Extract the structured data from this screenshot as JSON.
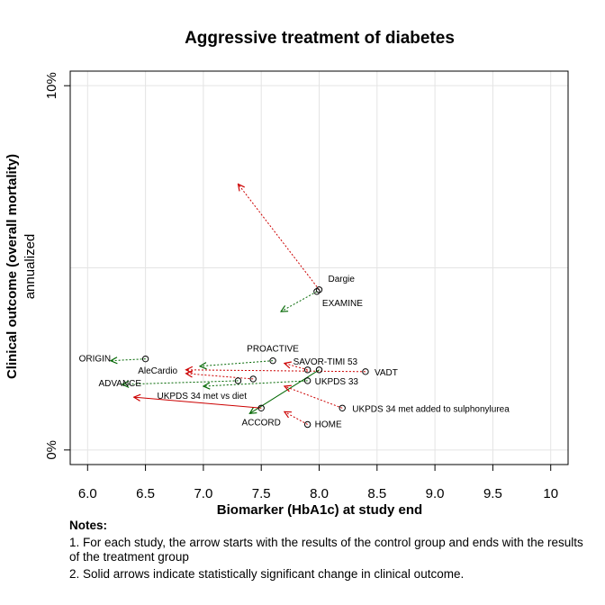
{
  "chart_data": {
    "type": "scatter",
    "title": "Aggressive treatment of diabetes",
    "xlabel": "Biomarker (HbA1c) at study end",
    "ylabel": "Clinical outcome (overall mortality)",
    "ylabel_sub": "annualized",
    "xlim": [
      5.85,
      10.15
    ],
    "ylim": [
      -0.4,
      10.4
    ],
    "x_ticks": [
      {
        "value": 6.0,
        "label": "6.0"
      },
      {
        "value": 6.5,
        "label": "6.5"
      },
      {
        "value": 7.0,
        "label": "7.0"
      },
      {
        "value": 7.5,
        "label": "7.5"
      },
      {
        "value": 8.0,
        "label": "8.0"
      },
      {
        "value": 8.5,
        "label": "8.5"
      },
      {
        "value": 9.0,
        "label": "9.0"
      },
      {
        "value": 9.5,
        "label": "9.5"
      },
      {
        "value": 10.0,
        "label": "10"
      }
    ],
    "y_ticks": [
      {
        "value": 0,
        "label": "0%"
      },
      {
        "value": 10,
        "label": "10%"
      }
    ],
    "grid": true,
    "colors": {
      "red": "#cc0000",
      "green": "#006600"
    },
    "studies": [
      {
        "name": "Dargie",
        "x1": 8.0,
        "y1": 4.4,
        "x2": 7.3,
        "y2": 7.3,
        "color": "red",
        "significant": false
      },
      {
        "name": "EXAMINE",
        "x1": 7.98,
        "y1": 4.35,
        "x2": 7.67,
        "y2": 3.8,
        "color": "green",
        "significant": false
      },
      {
        "name": "PROACTIVE",
        "x1": 7.6,
        "y1": 2.45,
        "x2": 6.97,
        "y2": 2.3,
        "color": "green",
        "significant": false
      },
      {
        "name": "SAVOR-TIMI 53",
        "x1": 7.9,
        "y1": 2.2,
        "x2": 7.7,
        "y2": 2.38,
        "color": "red",
        "significant": false
      },
      {
        "name": "VADT",
        "x1": 8.4,
        "y1": 2.15,
        "x2": 6.85,
        "y2": 2.2,
        "color": "red",
        "significant": false
      },
      {
        "name": "ORIGIN",
        "x1": 6.5,
        "y1": 2.5,
        "x2": 6.2,
        "y2": 2.45,
        "color": "green",
        "significant": false
      },
      {
        "name": "AleCardio",
        "x1": 7.43,
        "y1": 1.95,
        "x2": 6.85,
        "y2": 2.1,
        "color": "red",
        "significant": false
      },
      {
        "name": "ADVANCE",
        "x1": 7.3,
        "y1": 1.9,
        "x2": 6.3,
        "y2": 1.8,
        "color": "green",
        "significant": false
      },
      {
        "name": "UKPDS 33",
        "x1": 7.9,
        "y1": 1.9,
        "x2": 7.0,
        "y2": 1.75,
        "color": "green",
        "significant": false
      },
      {
        "name": "UKPDS 34 met vs diet",
        "x1": 8.0,
        "y1": 2.2,
        "x2": 7.4,
        "y2": 1.0,
        "color": "green",
        "significant": true
      },
      {
        "name": "ACCORD",
        "x1": 7.5,
        "y1": 1.15,
        "x2": 6.4,
        "y2": 1.45,
        "color": "red",
        "significant": true
      },
      {
        "name": "UKPDS 34 met added to sulphonylurea",
        "x1": 8.2,
        "y1": 1.15,
        "x2": 7.7,
        "y2": 1.75,
        "color": "red",
        "significant": false
      },
      {
        "name": "HOME",
        "x1": 7.9,
        "y1": 0.7,
        "x2": 7.7,
        "y2": 1.05,
        "color": "red",
        "significant": false
      }
    ]
  },
  "notes": {
    "title": "Notes:",
    "line1": "1. For each study, the arrow starts with the results of the control group and ends with the results of the treatment group",
    "line2": "2. Solid arrows indicate statistically significant change in clinical outcome."
  }
}
